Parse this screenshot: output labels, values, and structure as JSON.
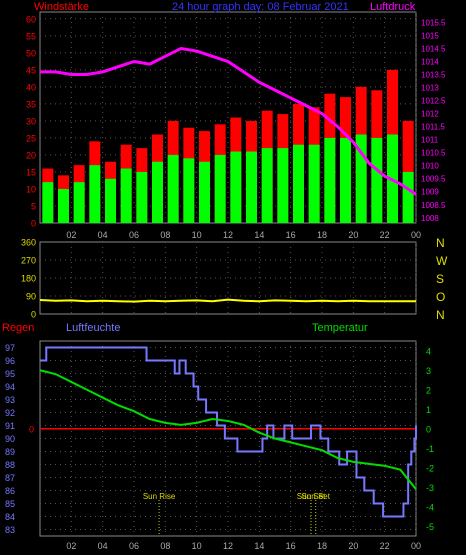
{
  "chart_data": [
    {
      "type": "bar",
      "title": "24 hour graph day: 08 Februar 2021",
      "left_label": "Windstärke",
      "right_label": "Luftdruck",
      "x_ticks": [
        "02",
        "04",
        "06",
        "08",
        "10",
        "12",
        "14",
        "16",
        "18",
        "20",
        "22",
        "00"
      ],
      "y_left_ticks": [
        "0",
        "5",
        "10",
        "15",
        "20",
        "25",
        "30",
        "35",
        "40",
        "45",
        "50",
        "55",
        "60"
      ],
      "y_left_range": [
        0,
        62
      ],
      "y_right_ticks": [
        "1008",
        "1008.5",
        "1009",
        "1009.5",
        "1010",
        "1010.5",
        "1011",
        "1011.5",
        "1012",
        "1012.5",
        "1013",
        "1013.5",
        "1014",
        "1014.5",
        "1015",
        "1015.5"
      ],
      "y_right_range": [
        1007.8,
        1015.9
      ],
      "grid": true,
      "series": [
        {
          "name": "Windstärke",
          "type": "bar",
          "color": "#ff0000",
          "x": [
            1,
            2,
            3,
            4,
            5,
            6,
            7,
            8,
            9,
            10,
            11,
            12,
            13,
            14,
            15,
            16,
            17,
            18,
            19,
            20,
            21,
            22,
            23,
            24
          ],
          "values": [
            16,
            14,
            17,
            24,
            18,
            23,
            22,
            26,
            30,
            28,
            27,
            29,
            31,
            30,
            33,
            32,
            35,
            34,
            38,
            37,
            40,
            39,
            45,
            30
          ]
        },
        {
          "name": "gust_low",
          "type": "bar",
          "color": "#00ff00",
          "x": [
            1,
            2,
            3,
            4,
            5,
            6,
            7,
            8,
            9,
            10,
            11,
            12,
            13,
            14,
            15,
            16,
            17,
            18,
            19,
            20,
            21,
            22,
            23,
            24
          ],
          "values": [
            12,
            10,
            12,
            17,
            13,
            16,
            15,
            18,
            20,
            19,
            18,
            20,
            21,
            21,
            22,
            22,
            23,
            23,
            25,
            25,
            26,
            25,
            26,
            15
          ]
        },
        {
          "name": "Luftdruck",
          "type": "line",
          "color": "#ff00ff",
          "axis": "right",
          "x": [
            0,
            1,
            2,
            3,
            4,
            5,
            6,
            7,
            8,
            9,
            10,
            11,
            12,
            13,
            14,
            15,
            16,
            17,
            18,
            19,
            20,
            21,
            22,
            23,
            24
          ],
          "values": [
            1013.6,
            1013.6,
            1013.5,
            1013.5,
            1013.6,
            1013.8,
            1014.0,
            1013.9,
            1014.2,
            1014.5,
            1014.4,
            1014.2,
            1014.0,
            1013.6,
            1013.2,
            1012.9,
            1012.6,
            1012.3,
            1012.0,
            1011.5,
            1010.9,
            1010.1,
            1009.6,
            1009.3,
            1008.9
          ]
        }
      ]
    },
    {
      "type": "line",
      "y_left_ticks": [
        "0",
        "90",
        "180",
        "270",
        "360"
      ],
      "y_left_range": [
        0,
        360
      ],
      "right_labels": [
        "N",
        "W",
        "S",
        "O",
        "N"
      ],
      "series": [
        {
          "name": "wind_direction",
          "color": "#ffff00",
          "x": [
            0,
            1,
            2,
            3,
            4,
            5,
            6,
            7,
            8,
            9,
            10,
            11,
            12,
            13,
            14,
            15,
            16,
            17,
            18,
            19,
            20,
            21,
            22,
            23,
            24
          ],
          "values": [
            70,
            66,
            68,
            64,
            66,
            64,
            62,
            66,
            64,
            66,
            68,
            64,
            72,
            66,
            64,
            68,
            66,
            64,
            66,
            64,
            66,
            64,
            64,
            64,
            64
          ]
        }
      ]
    },
    {
      "type": "line",
      "left_label": "Regen",
      "mid_label": "Luftfeuchte",
      "right_label": "Temperatur",
      "x_ticks": [
        "02",
        "04",
        "06",
        "08",
        "10",
        "12",
        "14",
        "16",
        "18",
        "20",
        "22",
        "00"
      ],
      "y_left_ticks": [
        "83",
        "84",
        "85",
        "86",
        "87",
        "88",
        "89",
        "90",
        "91",
        "92",
        "93",
        "94",
        "95",
        "96",
        "97"
      ],
      "y_left_range": [
        82.5,
        97.5
      ],
      "y_right_ticks": [
        "-5",
        "-4",
        "-3",
        "-2",
        "-1",
        "0",
        "1",
        "2",
        "3",
        "4"
      ],
      "y_right_range": [
        -5.5,
        4.5
      ],
      "rain_ticks": [
        "0"
      ],
      "annotations": [
        {
          "text": "Sun Rise",
          "x": 7.6
        },
        {
          "text": "Sun Set",
          "x": 17.3
        },
        {
          "text": "Sun Set",
          "x": 17.6
        }
      ],
      "series": [
        {
          "name": "Luftfeuchte",
          "color": "#7777ff",
          "step": true,
          "x": [
            0,
            0.4,
            6.8,
            8.6,
            8.9,
            9.3,
            9.8,
            10.1,
            10.6,
            11.3,
            11.8,
            12.3,
            12.6,
            13.4,
            14.2,
            14.5,
            14.9,
            15.6,
            16.1,
            16.6,
            17.3,
            17.9,
            18.4,
            19.1,
            19.6,
            20.2,
            20.7,
            21.3,
            21.9,
            22.6,
            23.2,
            23.5,
            23.7,
            23.9,
            24
          ],
          "values": [
            96,
            97,
            96,
            95,
            96,
            95,
            94,
            93,
            92,
            91,
            90,
            90,
            89,
            89,
            90,
            91,
            90,
            91,
            90,
            90,
            91,
            90,
            89,
            88,
            89,
            87,
            86,
            85,
            84,
            84,
            85,
            88,
            89,
            90,
            91
          ]
        },
        {
          "name": "Temperatur",
          "color": "#00dd00",
          "axis": "right",
          "x": [
            0,
            1,
            2,
            3,
            4,
            5,
            6,
            7,
            8,
            9,
            10,
            11,
            12,
            13,
            14,
            15,
            16,
            17,
            18,
            19,
            20,
            21,
            22,
            23,
            24
          ],
          "values": [
            3.0,
            2.8,
            2.4,
            2.0,
            1.6,
            1.2,
            0.9,
            0.5,
            0.3,
            0.2,
            0.3,
            0.5,
            0.4,
            0.2,
            -0.2,
            -0.5,
            -0.7,
            -0.9,
            -1.1,
            -1.5,
            -1.7,
            -1.8,
            -1.9,
            -2.1,
            -3.1
          ]
        },
        {
          "name": "Regen",
          "color": "#ff0000",
          "x": [
            0,
            24
          ],
          "values": [
            0,
            0
          ]
        }
      ]
    }
  ]
}
